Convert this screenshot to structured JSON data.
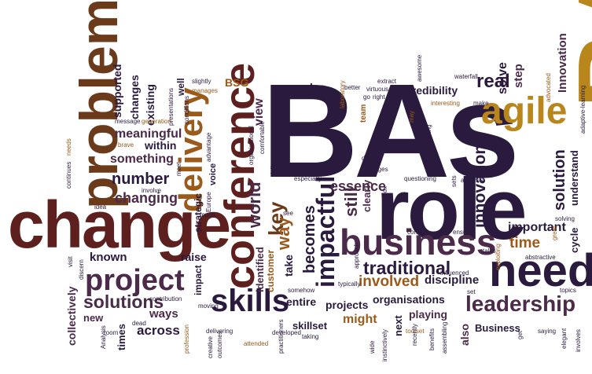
{
  "palette": {
    "dark_purple": "#2a1a3e",
    "plum": "#4b2a4a",
    "maroon": "#5e1f1f",
    "brown": "#6b3a1a",
    "orange_brown": "#9c5a1a",
    "gold": "#b8861b",
    "dark_brown": "#3b2414"
  },
  "words": [
    "BAs",
    "role",
    "BA",
    "change",
    "problem",
    "conference",
    "need",
    "business",
    "agile",
    "skills",
    "project",
    "delivery",
    "impactful",
    "leadership",
    "innovation",
    "key",
    "solutions",
    "real",
    "solution",
    "way",
    "traditional",
    "world",
    "essence",
    "number",
    "involved",
    "still",
    "changing",
    "becomes",
    "credibility",
    "time",
    "step",
    "Innovation",
    "important",
    "known",
    "something",
    "across",
    "meaningful",
    "roles",
    "solve",
    "view",
    "ways",
    "within",
    "supported",
    "changes",
    "existing",
    "raise",
    "strategic",
    "identified",
    "customer",
    "impact",
    "take",
    "entire",
    "projects",
    "clearly",
    "discipline",
    "organisations",
    "playing",
    "skillset",
    "might",
    "Business",
    "also",
    "next",
    "cycle",
    "understand",
    "times",
    "new",
    "collectively",
    "well",
    "voice",
    "BSG",
    "team",
    "waterfall",
    "extract",
    "awesome",
    "better",
    "virtuous",
    "go",
    "right",
    "laboratory",
    "interesting",
    "make",
    "advocated",
    "adaptive-learning",
    "slightly",
    "manages",
    "presentations",
    "generation",
    "conditions",
    "message",
    "advantage",
    "brave",
    "meet",
    "involve",
    "Europe",
    "comfortable",
    "organisational",
    "embedding",
    "may",
    "halted",
    "driving",
    "stages",
    "questioning",
    "especially",
    "deliver",
    "concern",
    "ensure",
    "sets",
    "analysis",
    "exploiting",
    "great",
    "solving",
    "abstractive",
    "topics",
    "saying",
    "elegant",
    "involves",
    "taking",
    "toolset",
    "recently",
    "benefits",
    "assembling",
    "wide",
    "instinctively",
    "developed",
    "practitioners",
    "attended",
    "delivering",
    "moving",
    "contribution",
    "profession",
    "dead",
    "room",
    "outcomes",
    "creative",
    "Analysis",
    "discern",
    "idea",
    "continues",
    "needs",
    "visit",
    "box",
    "much",
    "see",
    "approach",
    "typically",
    "somehow",
    "influenced",
    "talks",
    "get",
    "set"
  ]
}
